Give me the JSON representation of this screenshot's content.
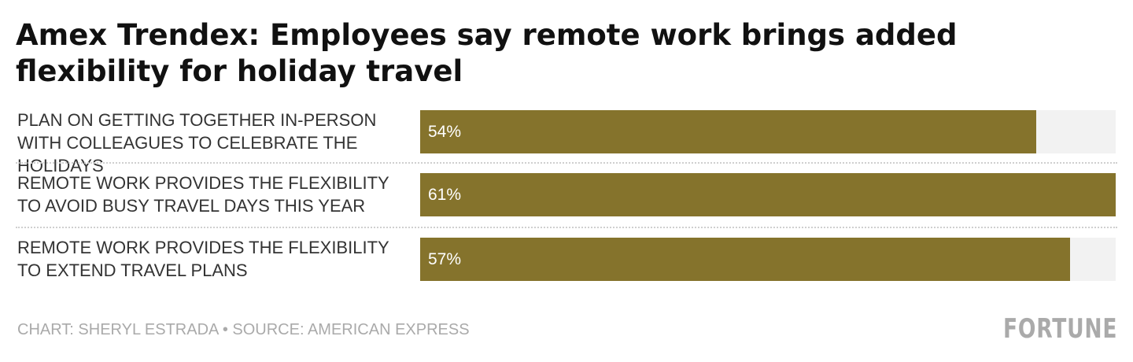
{
  "title": "Amex Trendex: Employees say remote work brings added flexibility for holiday travel",
  "credit": "CHART: SHERYL ESTRADA • SOURCE: AMERICAN EXPRESS",
  "logo": "FORTUNE",
  "colors": {
    "bar": "#85732c",
    "track": "#f2f2f2",
    "muted": "#aaaaaa"
  },
  "chart_data": {
    "type": "bar",
    "orientation": "horizontal",
    "categories": [
      "PLAN ON GETTING TOGETHER IN-PERSON WITH COLLEAGUES TO CELEBRATE THE HOLIDAYS",
      "REMOTE WORK PROVIDES THE FLEXIBILITY TO AVOID BUSY TRAVEL DAYS THIS YEAR",
      "REMOTE WORK PROVIDES THE FLEXIBILITY TO EXTEND TRAVEL PLANS"
    ],
    "values": [
      54,
      61,
      57
    ],
    "data_labels": [
      "54%",
      "61%",
      "57%"
    ],
    "unit": "%",
    "xlim": [
      0,
      61
    ],
    "grid": false,
    "legend": "none"
  }
}
